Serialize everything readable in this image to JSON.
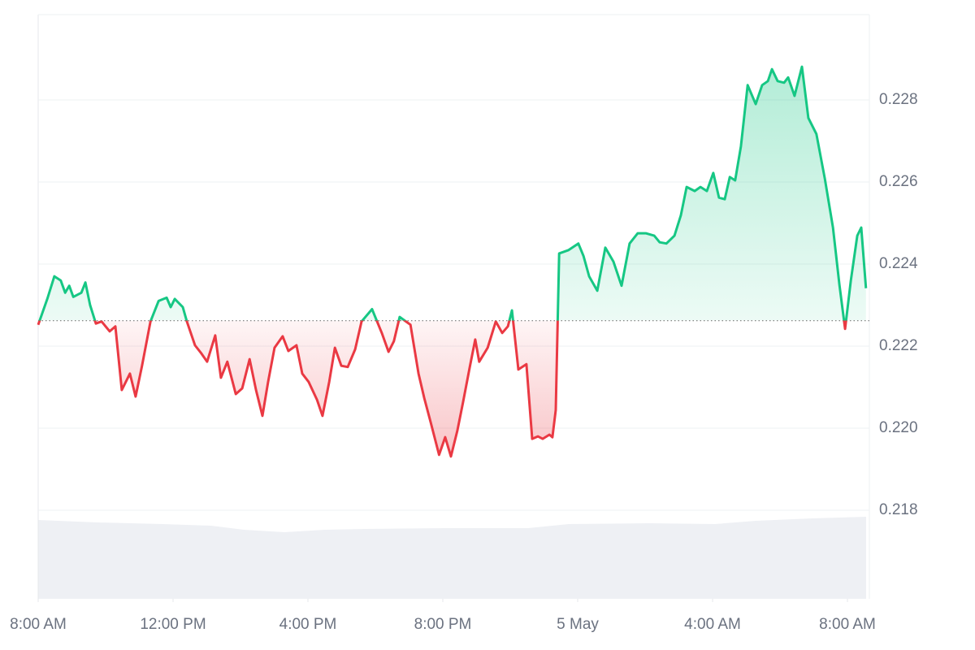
{
  "chart_data": {
    "type": "line",
    "x": [
      0,
      0.27,
      0.48,
      0.67,
      0.8,
      0.92,
      1.04,
      1.28,
      1.4,
      1.54,
      1.71,
      1.88,
      2.12,
      2.29,
      2.48,
      2.72,
      2.89,
      3.08,
      3.33,
      3.57,
      3.81,
      3.93,
      4.05,
      4.29,
      4.41,
      4.65,
      4.84,
      5.01,
      5.25,
      5.42,
      5.61,
      5.86,
      6.05,
      6.27,
      6.46,
      6.65,
      6.82,
      7.01,
      7.25,
      7.42,
      7.66,
      7.83,
      8.02,
      8.27,
      8.43,
      8.63,
      8.8,
      8.99,
      9.18,
      9.4,
      9.59,
      9.9,
      10.19,
      10.39,
      10.55,
      10.72,
      11.04,
      11.28,
      11.45,
      11.64,
      11.89,
      12.07,
      12.24,
      12.43,
      12.6,
      12.8,
      12.96,
      13.08,
      13.33,
      13.57,
      13.76,
      13.93,
      14.05,
      14.24,
      14.48,
      14.65,
      14.82,
      14.96,
      15.16,
      15.25,
      15.35,
      15.45,
      15.73,
      16.02,
      16.17,
      16.34,
      16.58,
      16.82,
      17.06,
      17.3,
      17.54,
      17.78,
      18.02,
      18.27,
      18.43,
      18.63,
      18.87,
      19.06,
      19.23,
      19.47,
      19.64,
      19.83,
      20.02,
      20.19,
      20.36,
      20.51,
      20.67,
      20.84,
      21.04,
      21.28,
      21.47,
      21.64,
      21.76,
      21.93,
      22.12,
      22.24,
      22.43,
      22.65,
      22.84,
      23.08,
      23.33,
      23.57,
      23.76,
      23.93,
      24.1,
      24.29,
      24.41,
      24.55
    ],
    "values": [
      0.22252,
      0.22315,
      0.2237,
      0.2236,
      0.2233,
      0.22347,
      0.2232,
      0.2233,
      0.22355,
      0.223,
      0.22255,
      0.2226,
      0.22236,
      0.22248,
      0.22093,
      0.22133,
      0.22077,
      0.22152,
      0.2226,
      0.2231,
      0.22318,
      0.22295,
      0.22315,
      0.22295,
      0.2226,
      0.22202,
      0.22182,
      0.22162,
      0.22226,
      0.22123,
      0.22162,
      0.22083,
      0.22097,
      0.22168,
      0.22093,
      0.2203,
      0.22113,
      0.22196,
      0.22224,
      0.22188,
      0.22202,
      0.22133,
      0.22113,
      0.22069,
      0.2203,
      0.22113,
      0.22196,
      0.22152,
      0.22149,
      0.22192,
      0.2226,
      0.2229,
      0.22232,
      0.22186,
      0.22212,
      0.22271,
      0.22252,
      0.22133,
      0.22073,
      0.22014,
      0.21935,
      0.21978,
      0.21931,
      0.21994,
      0.22063,
      0.22149,
      0.22216,
      0.22162,
      0.22196,
      0.2226,
      0.22232,
      0.22248,
      0.22287,
      0.22143,
      0.22156,
      0.21974,
      0.2198,
      0.21974,
      0.21984,
      0.21978,
      0.22044,
      0.22426,
      0.22434,
      0.2245,
      0.2242,
      0.2237,
      0.22335,
      0.2244,
      0.22406,
      0.22347,
      0.2245,
      0.22475,
      0.22475,
      0.22469,
      0.22453,
      0.2245,
      0.22469,
      0.22519,
      0.22588,
      0.22578,
      0.22588,
      0.22578,
      0.22622,
      0.22562,
      0.22558,
      0.22612,
      0.22604,
      0.22687,
      0.22836,
      0.2279,
      0.22836,
      0.22846,
      0.22875,
      0.22846,
      0.22842,
      0.22855,
      0.2281,
      0.22881,
      0.22756,
      0.22717,
      0.22608,
      0.22489,
      0.2235,
      0.22242,
      0.2236,
      0.22469,
      0.22489,
      0.22341
    ],
    "baseline": 0.22262,
    "color_up": "#16c784",
    "color_down": "#ea3943",
    "xlim": [
      0,
      24.65
    ],
    "xticks": [
      {
        "value": 0,
        "label": "8:00 AM"
      },
      {
        "value": 4,
        "label": "12:00 PM"
      },
      {
        "value": 8,
        "label": "4:00 PM"
      },
      {
        "value": 12,
        "label": "8:00 PM"
      },
      {
        "value": 16,
        "label": "5 May"
      },
      {
        "value": 20,
        "label": "4:00 AM"
      },
      {
        "value": 24,
        "label": "8:00 AM"
      }
    ],
    "ylim": [
      0.21584,
      0.23008
    ],
    "yticks": [
      0.218,
      {
        "value": 0.22,
        "label": "0.220"
      },
      0.222,
      0.224,
      0.226,
      0.228
    ],
    "grid": true
  }
}
